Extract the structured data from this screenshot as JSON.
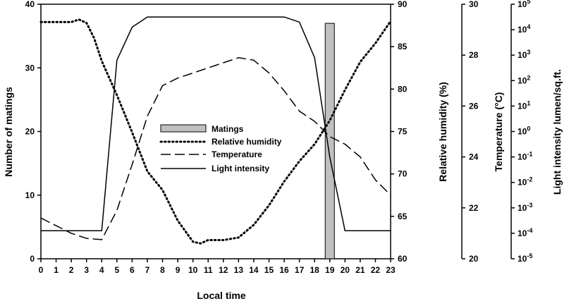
{
  "chart_data": {
    "type": "bar+line",
    "x": [
      0,
      1,
      2,
      3,
      4,
      5,
      6,
      7,
      8,
      9,
      10,
      11,
      12,
      13,
      14,
      15,
      16,
      17,
      18,
      19,
      20,
      21,
      22,
      23
    ],
    "xlabel": "Local time",
    "xticks": [
      "0",
      "1",
      "2",
      "3",
      "4",
      "5",
      "6",
      "7",
      "8",
      "9",
      "10",
      "11",
      "12",
      "13",
      "14",
      "15",
      "16",
      "17",
      "18",
      "19",
      "20",
      "21",
      "22",
      "23"
    ],
    "axes": {
      "matings": {
        "label": "Number of matings",
        "range": [
          0,
          40
        ],
        "ticks": [
          "0",
          "10",
          "20",
          "30",
          "40"
        ]
      },
      "humidity": {
        "label": "Relative humidity (%)",
        "range": [
          60,
          90
        ],
        "ticks": [
          "60",
          "65",
          "70",
          "75",
          "80",
          "85",
          "90"
        ]
      },
      "temperature": {
        "label": "Temperature (°C)",
        "range": [
          20,
          30
        ],
        "ticks": [
          "20",
          "22",
          "24",
          "26",
          "28",
          "30"
        ]
      },
      "light": {
        "label": "Light intensity lumen/sq.ft.",
        "scale": "log",
        "range_exponents": [
          -5,
          5
        ],
        "tick_base": "10",
        "tick_exponents": [
          "-5",
          "-4",
          "-3",
          "-2",
          "-1",
          "0",
          "1",
          "2",
          "3",
          "4",
          "5"
        ]
      }
    },
    "bars": [
      {
        "name": "Matings",
        "x": 19,
        "value": 37,
        "axis": "matings",
        "color": "#c0c0c0"
      }
    ],
    "series": [
      {
        "name": "Relative humidity",
        "axis": "humidity",
        "style": "dotted",
        "x": [
          0,
          1,
          2,
          2.5,
          3,
          3.5,
          4,
          5,
          6,
          7,
          8,
          9,
          10,
          10.5,
          11,
          12,
          13,
          14,
          15,
          16,
          17,
          18,
          19,
          20,
          21,
          22,
          23
        ],
        "values": [
          87.9,
          87.9,
          87.9,
          88.2,
          87.8,
          86,
          83.3,
          79.3,
          74.9,
          70.3,
          68.1,
          64.5,
          62.0,
          61.8,
          62.2,
          62.2,
          62.5,
          64.0,
          66.3,
          69.1,
          71.5,
          73.5,
          76.3,
          79.9,
          83.2,
          85.4,
          88
        ]
      },
      {
        "name": "Temperature",
        "axis": "temperature",
        "style": "dashed",
        "x": [
          0,
          1,
          2,
          3,
          4,
          5,
          6,
          7,
          8,
          9,
          10,
          11,
          12,
          13,
          14,
          15,
          16,
          17,
          18,
          19,
          20,
          21,
          22,
          23
        ],
        "values": [
          21.6,
          21.3,
          21.0,
          20.8,
          20.75,
          21.9,
          23.7,
          25.6,
          26.8,
          27.1,
          27.3,
          27.5,
          27.7,
          27.9,
          27.8,
          27.3,
          26.6,
          25.8,
          25.4,
          24.8,
          24.5,
          24.0,
          23.1,
          22.5
        ]
      },
      {
        "name": "Light intensity",
        "axis": "light",
        "style": "solid",
        "x": [
          0,
          1,
          2,
          3,
          4,
          5,
          6,
          7,
          8,
          9,
          10,
          11,
          12,
          13,
          14,
          15,
          16,
          17,
          18,
          19,
          20,
          21,
          22,
          23
        ],
        "values": [
          -3.9,
          -3.9,
          -3.9,
          -3.9,
          -3.9,
          2.8,
          4.1,
          4.5,
          4.5,
          4.5,
          4.5,
          4.5,
          4.5,
          4.5,
          4.5,
          4.5,
          4.5,
          4.3,
          2.9,
          -1.0,
          -3.9,
          -3.9,
          -3.9,
          -3.9
        ]
      }
    ],
    "legend": {
      "position": "center",
      "entries": [
        "Matings",
        "Relative humidity",
        "Temperature",
        "Light intensity"
      ]
    }
  }
}
